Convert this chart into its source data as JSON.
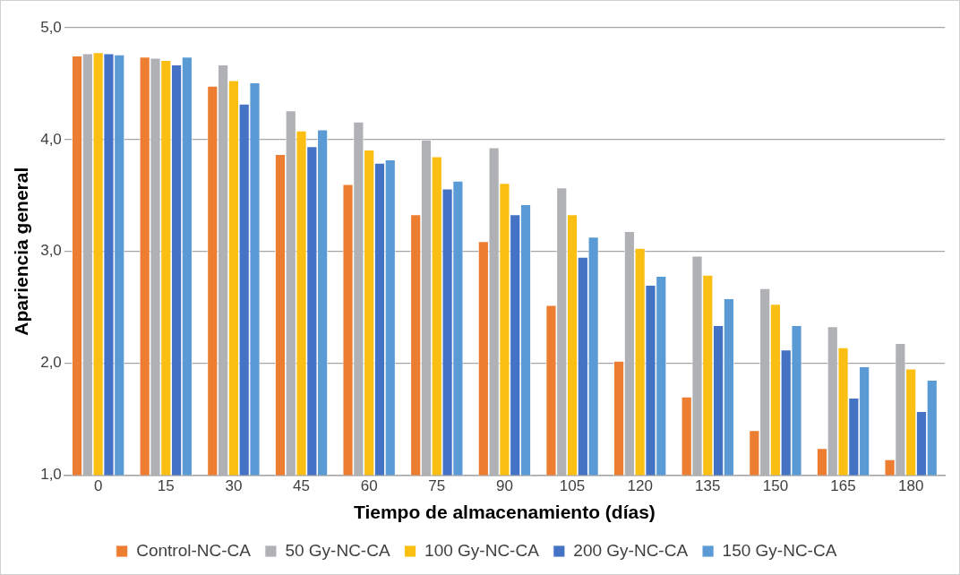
{
  "chart_data": {
    "type": "bar",
    "xlabel": "Tiempo de almacenamiento (días)",
    "ylabel": "Apariencia general",
    "categories": [
      "0",
      "15",
      "30",
      "45",
      "60",
      "75",
      "90",
      "105",
      "120",
      "135",
      "150",
      "165",
      "180"
    ],
    "series": [
      {
        "name": "Control-NC-CA",
        "color": "#ed7d31",
        "values": [
          4.75,
          4.74,
          4.48,
          3.87,
          3.6,
          3.33,
          3.09,
          2.52,
          2.02,
          1.7,
          1.4,
          1.24,
          1.14
        ]
      },
      {
        "name": "50 Gy-NC-CA",
        "color": "#b0b1b4",
        "values": [
          4.77,
          4.73,
          4.67,
          4.26,
          4.16,
          4.0,
          3.93,
          3.57,
          3.18,
          2.96,
          2.67,
          2.33,
          2.18
        ]
      },
      {
        "name": "100 Gy-NC-CA",
        "color": "#fbbf14",
        "values": [
          4.78,
          4.71,
          4.53,
          4.08,
          3.91,
          3.85,
          3.61,
          3.33,
          3.03,
          2.79,
          2.53,
          2.14,
          1.95
        ]
      },
      {
        "name": "200 Gy-NC-CA",
        "color": "#4472c4",
        "values": [
          4.77,
          4.67,
          4.32,
          3.94,
          3.79,
          3.56,
          3.33,
          2.95,
          2.7,
          2.34,
          2.12,
          1.69,
          1.57
        ]
      },
      {
        "name": "150 Gy-NC-CA",
        "color": "#5b9bd5",
        "values": [
          4.76,
          4.74,
          4.51,
          4.09,
          3.82,
          3.63,
          3.42,
          3.13,
          2.78,
          2.58,
          2.34,
          1.97,
          1.85
        ]
      }
    ],
    "ylim": [
      1,
      5
    ],
    "yticks": [
      {
        "value": 1,
        "label": "1,0"
      },
      {
        "value": 2,
        "label": "2,0"
      },
      {
        "value": 3,
        "label": "3,0"
      },
      {
        "value": 4,
        "label": "4,0"
      },
      {
        "value": 5,
        "label": "5,0"
      }
    ],
    "grid": "y",
    "legend": "bottom"
  }
}
